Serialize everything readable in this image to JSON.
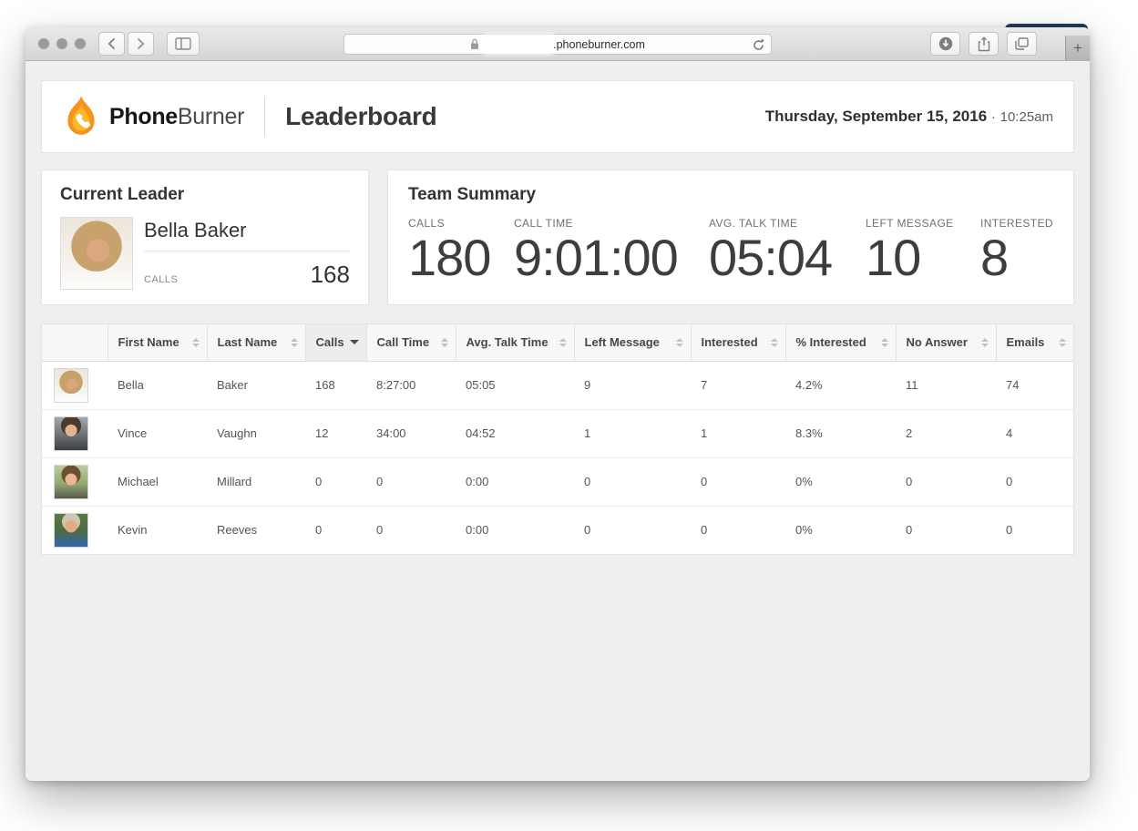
{
  "colors": {
    "brand_orange": "#f6921e",
    "brand_yellow": "#fcb826",
    "page_bg": "#efefef"
  },
  "browser": {
    "url_host": ".phoneburner.com",
    "new_tab_label": "+"
  },
  "header": {
    "brand_bold": "Phone",
    "brand_light": "Burner",
    "page_title": "Leaderboard",
    "date": "Thursday, September 15, 2016",
    "separator": "·",
    "time": "10:25am"
  },
  "current_leader": {
    "title": "Current Leader",
    "name": "Bella Baker",
    "stat_label": "CALLS",
    "stat_value": "168",
    "avatar": "bella"
  },
  "team_summary": {
    "title": "Team Summary",
    "stats": [
      {
        "label": "CALLS",
        "value": "180"
      },
      {
        "label": "CALL TIME",
        "value": "9:01:00"
      },
      {
        "label": "AVG. TALK TIME",
        "value": "05:04"
      },
      {
        "label": "LEFT MESSAGE",
        "value": "10"
      },
      {
        "label": "INTERESTED",
        "value": "8"
      }
    ]
  },
  "table": {
    "columns": [
      {
        "label": "",
        "sort": "none"
      },
      {
        "label": "First Name",
        "sort": "neutral"
      },
      {
        "label": "Last Name",
        "sort": "neutral"
      },
      {
        "label": "Calls",
        "sort": "desc"
      },
      {
        "label": "Call Time",
        "sort": "neutral"
      },
      {
        "label": "Avg. Talk Time",
        "sort": "neutral"
      },
      {
        "label": "Left Message",
        "sort": "neutral"
      },
      {
        "label": "Interested",
        "sort": "neutral"
      },
      {
        "label": "% Interested",
        "sort": "neutral"
      },
      {
        "label": "No Answer",
        "sort": "neutral"
      },
      {
        "label": "Emails",
        "sort": "neutral"
      }
    ],
    "rows": [
      {
        "avatar": "bella",
        "cells": [
          "Bella",
          "Baker",
          "168",
          "8:27:00",
          "05:05",
          "9",
          "7",
          "4.2%",
          "11",
          "74"
        ]
      },
      {
        "avatar": "vince",
        "cells": [
          "Vince",
          "Vaughn",
          "12",
          "34:00",
          "04:52",
          "1",
          "1",
          "8.3%",
          "2",
          "4"
        ]
      },
      {
        "avatar": "michael",
        "cells": [
          "Michael",
          "Millard",
          "0",
          "0",
          "0:00",
          "0",
          "0",
          "0%",
          "0",
          "0"
        ]
      },
      {
        "avatar": "kevin",
        "cells": [
          "Kevin",
          "Reeves",
          "0",
          "0",
          "0:00",
          "0",
          "0",
          "0%",
          "0",
          "0"
        ]
      }
    ]
  }
}
